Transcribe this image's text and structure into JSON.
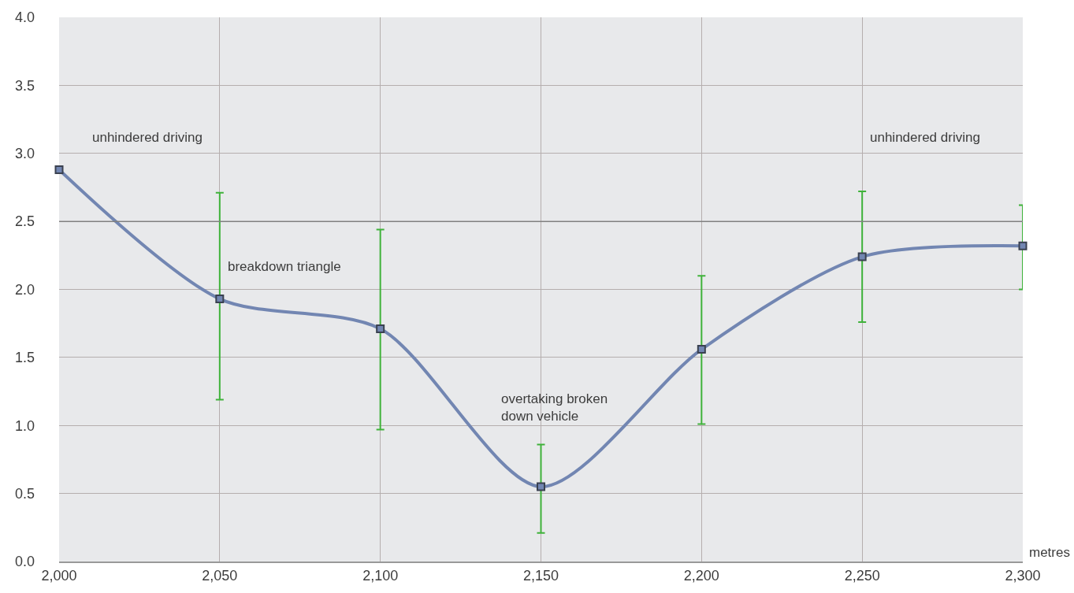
{
  "chart_data": {
    "type": "line",
    "xlabel": "metres",
    "x": [
      2000,
      2050,
      2100,
      2150,
      2200,
      2250,
      2300
    ],
    "series": [
      {
        "color": "#7286b2",
        "values": [
          2.88,
          1.93,
          1.71,
          0.55,
          1.56,
          2.24,
          2.32
        ],
        "errors": [
          null,
          [
            1.19,
            2.71
          ],
          [
            0.97,
            2.44
          ],
          [
            0.21,
            0.86
          ],
          [
            1.01,
            2.1
          ],
          [
            1.76,
            2.72
          ],
          [
            2.0,
            2.62
          ]
        ]
      }
    ],
    "xlim": [
      2000,
      2300
    ],
    "xticks": [
      {
        "value": 2000,
        "label": "2,000"
      },
      {
        "value": 2050,
        "label": "2,050"
      },
      {
        "value": 2100,
        "label": "2,100"
      },
      {
        "value": 2150,
        "label": "2,150"
      },
      {
        "value": 2200,
        "label": "2,200"
      },
      {
        "value": 2250,
        "label": "2,250"
      },
      {
        "value": 2300,
        "label": "2,300"
      }
    ],
    "ylim": [
      0,
      4
    ],
    "yticks": [
      {
        "value": 0,
        "label": "0.0"
      },
      {
        "value": 0.5,
        "label": "0.5"
      },
      {
        "value": 1,
        "label": "1.0"
      },
      {
        "value": 1.5,
        "label": "1.5"
      },
      {
        "value": 2,
        "label": "2.0"
      },
      {
        "value": 2.5,
        "label": "2.5"
      },
      {
        "value": 3,
        "label": "3.0"
      },
      {
        "value": 3.5,
        "label": "3.5"
      },
      {
        "value": 4,
        "label": "4.0"
      }
    ],
    "ref_lines": [
      {
        "axis": "y",
        "value": 2.5,
        "color": "#808080"
      }
    ],
    "annotations": [
      "unhindered driving",
      "breakdown triangle",
      "overtaking broken\ndown vehicle",
      "unhindered driving"
    ],
    "grid": true,
    "marker": "square",
    "line_style": "solid"
  }
}
